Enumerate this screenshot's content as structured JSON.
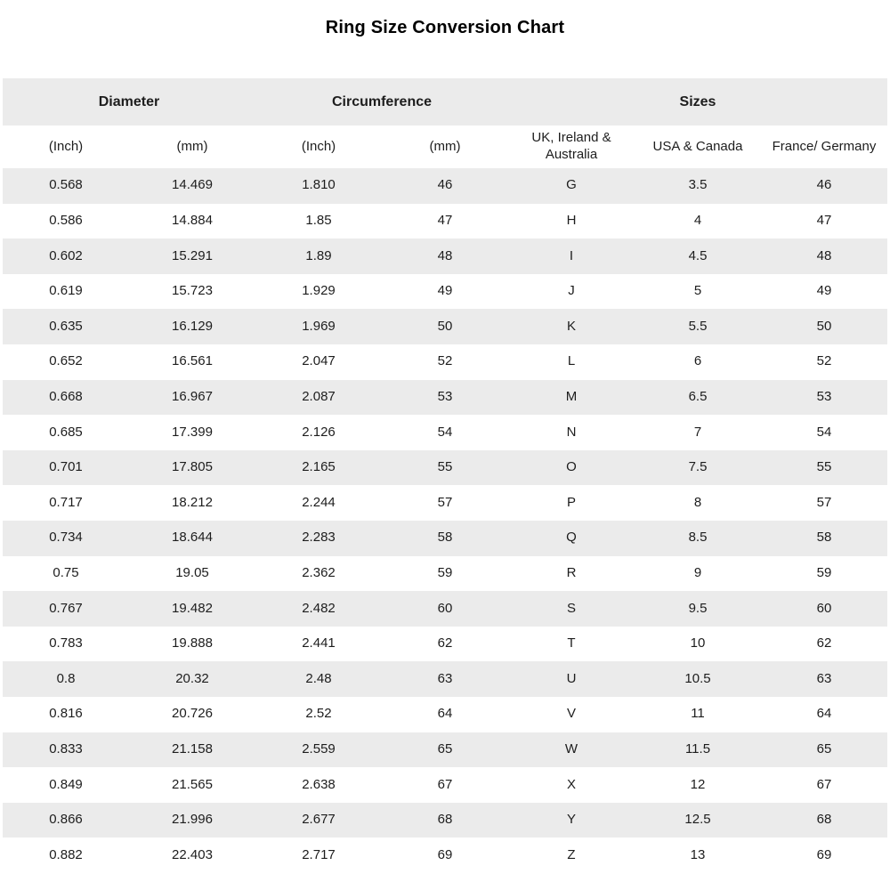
{
  "title": "Ring Size Conversion Chart",
  "colors": {
    "stripe": "#ebebeb",
    "background": "#ffffff",
    "text": "#1d1d1d"
  },
  "chart_data": {
    "type": "table",
    "title": "Ring Size Conversion Chart",
    "group_headers": [
      {
        "label": "Diameter",
        "span": 2
      },
      {
        "label": "Circumference",
        "span": 2
      },
      {
        "label": "Sizes",
        "span": 3
      }
    ],
    "columns": [
      "(Inch)",
      "(mm)",
      "(Inch)",
      "(mm)",
      "UK, Ireland & Australia",
      "USA & Canada",
      "France/ Germany"
    ],
    "rows": [
      [
        "0.568",
        "14.469",
        "1.810",
        "46",
        "G",
        "3.5",
        "46"
      ],
      [
        "0.586",
        "14.884",
        "1.85",
        "47",
        "H",
        "4",
        "47"
      ],
      [
        "0.602",
        "15.291",
        "1.89",
        "48",
        "I",
        "4.5",
        "48"
      ],
      [
        "0.619",
        "15.723",
        "1.929",
        "49",
        "J",
        "5",
        "49"
      ],
      [
        "0.635",
        "16.129",
        "1.969",
        "50",
        "K",
        "5.5",
        "50"
      ],
      [
        "0.652",
        "16.561",
        "2.047",
        "52",
        "L",
        "6",
        "52"
      ],
      [
        "0.668",
        "16.967",
        "2.087",
        "53",
        "M",
        "6.5",
        "53"
      ],
      [
        "0.685",
        "17.399",
        "2.126",
        "54",
        "N",
        "7",
        "54"
      ],
      [
        "0.701",
        "17.805",
        "2.165",
        "55",
        "O",
        "7.5",
        "55"
      ],
      [
        "0.717",
        "18.212",
        "2.244",
        "57",
        "P",
        "8",
        "57"
      ],
      [
        "0.734",
        "18.644",
        "2.283",
        "58",
        "Q",
        "8.5",
        "58"
      ],
      [
        "0.75",
        "19.05",
        "2.362",
        "59",
        "R",
        "9",
        "59"
      ],
      [
        "0.767",
        "19.482",
        "2.482",
        "60",
        "S",
        "9.5",
        "60"
      ],
      [
        "0.783",
        "19.888",
        "2.441",
        "62",
        "T",
        "10",
        "62"
      ],
      [
        "0.8",
        "20.32",
        "2.48",
        "63",
        "U",
        "10.5",
        "63"
      ],
      [
        "0.816",
        "20.726",
        "2.52",
        "64",
        "V",
        "11",
        "64"
      ],
      [
        "0.833",
        "21.158",
        "2.559",
        "65",
        "W",
        "11.5",
        "65"
      ],
      [
        "0.849",
        "21.565",
        "2.638",
        "67",
        "X",
        "12",
        "67"
      ],
      [
        "0.866",
        "21.996",
        "2.677",
        "68",
        "Y",
        "12.5",
        "68"
      ],
      [
        "0.882",
        "22.403",
        "2.717",
        "69",
        "Z",
        "13",
        "69"
      ]
    ]
  }
}
